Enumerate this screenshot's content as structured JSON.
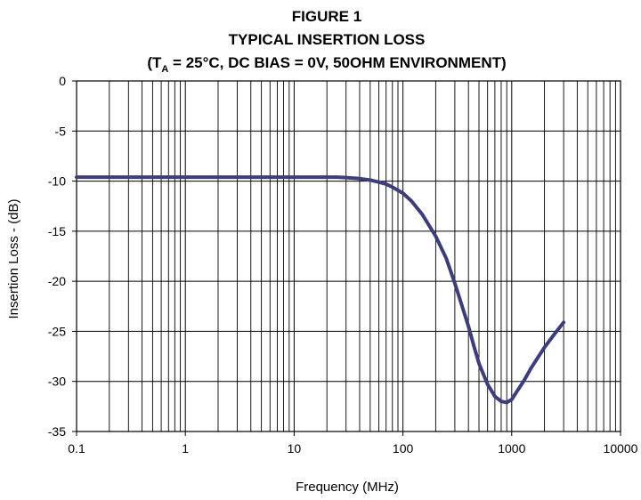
{
  "chart_data": {
    "type": "line",
    "title": [
      "FIGURE 1",
      "TYPICAL INSERTION LOSS"
    ],
    "subtitle": {
      "prefix": "(T",
      "subscript": "A",
      "suffix": " = 25°C, DC BIAS = 0V, 50OHM ENVIRONMENT)"
    },
    "xlabel": "Frequency (MHz)",
    "ylabel": "Insertion Loss -  (dB)",
    "xscale": "log",
    "xlim": [
      0.1,
      10000
    ],
    "ylim": [
      -35,
      0
    ],
    "xticks": [
      0.1,
      1,
      10,
      100,
      1000,
      10000
    ],
    "xtick_labels": [
      "0.1",
      "1",
      "10",
      "100",
      "1000",
      "10000"
    ],
    "yticks": [
      0,
      -5,
      -10,
      -15,
      -20,
      -25,
      -30,
      -35
    ],
    "ytick_labels": [
      "0",
      "-5",
      "-10",
      "-15",
      "-20",
      "-25",
      "-30",
      "-35"
    ],
    "grid": true,
    "line_color": "#3d3d7a",
    "series": [
      {
        "x": [
          0.1,
          1,
          10,
          25,
          30,
          40,
          50,
          60,
          70,
          80,
          100,
          120,
          150,
          200,
          250,
          300,
          350,
          400,
          450,
          500,
          600,
          700,
          800,
          900,
          1000,
          1100,
          1300,
          1500,
          2000,
          2500,
          3000
        ],
        "y": [
          -9.6,
          -9.6,
          -9.6,
          -9.6,
          -9.65,
          -9.75,
          -9.9,
          -10.1,
          -10.3,
          -10.6,
          -11.2,
          -12.0,
          -13.3,
          -15.5,
          -17.7,
          -20.2,
          -22.5,
          -24.5,
          -26.5,
          -28.2,
          -30.3,
          -31.5,
          -32.0,
          -32.1,
          -31.8,
          -31.1,
          -29.9,
          -28.7,
          -26.6,
          -25.2,
          -24.1
        ]
      }
    ]
  }
}
